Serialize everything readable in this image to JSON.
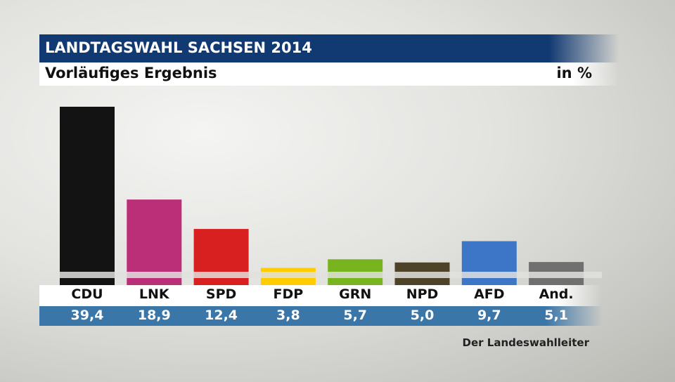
{
  "header": {
    "title": "LANDTAGSWAHL SACHSEN 2014",
    "subtitle": "Vorläufiges Ergebnis",
    "unit": "in %"
  },
  "source": "Der Landeswahlleiter",
  "chart_data": {
    "type": "bar",
    "title": "LANDTAGSWAHL SACHSEN 2014",
    "subtitle": "Vorläufiges Ergebnis",
    "unit": "in %",
    "categories": [
      "CDU",
      "LNK",
      "SPD",
      "FDP",
      "GRN",
      "NPD",
      "AFD",
      "And."
    ],
    "values": [
      39.4,
      18.9,
      12.4,
      3.8,
      5.7,
      5.0,
      9.7,
      5.1
    ],
    "value_labels": [
      "39,4",
      "18,9",
      "12,4",
      "3,8",
      "5,7",
      "5,0",
      "9,7",
      "5,1"
    ],
    "colors": [
      "#131313",
      "#bb2f78",
      "#d92020",
      "#ffcc00",
      "#78b41e",
      "#4d4328",
      "#3d76c6",
      "#707070"
    ],
    "grid": false,
    "legend": "none"
  }
}
